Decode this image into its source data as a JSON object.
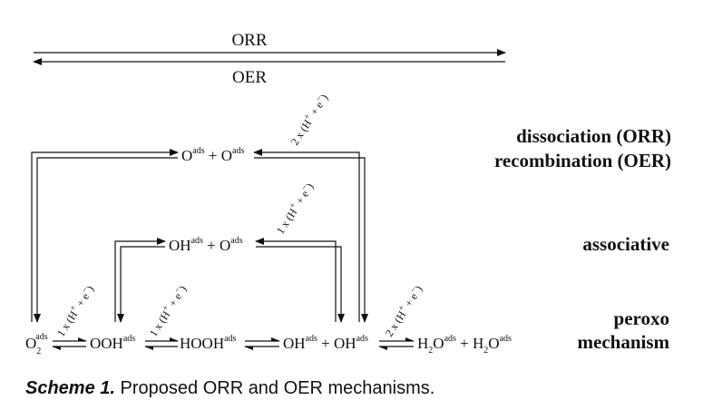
{
  "direction": {
    "forward": "ORR",
    "reverse": "OER"
  },
  "species": {
    "o2": "O",
    "o2_sub": "2",
    "ads": "ads",
    "ooh": "OOH",
    "hooh": "HOOH",
    "oh": "OH",
    "o": "O",
    "h2o": "H",
    "h2o_sub": "2",
    "h2o_tail": "O",
    "plus": "+"
  },
  "steps": {
    "one": "1 x (H",
    "two": "2 x (H",
    "plus_e": " + e",
    "sup_plus": "+",
    "sup_minus": "−",
    "close": ")"
  },
  "pathways": {
    "dissociation": "dissociation (ORR)",
    "recombination": "recombination (OER)",
    "associative": "associative",
    "peroxo": "peroxo",
    "mechanism": "mechanism"
  },
  "caption": {
    "label": "Scheme 1.",
    "text": "Proposed ORR and OER mechanisms."
  }
}
